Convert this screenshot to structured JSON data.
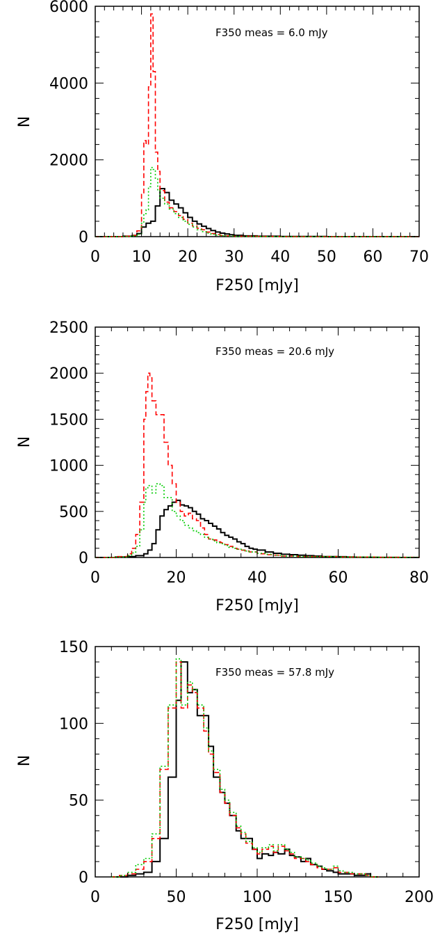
{
  "figure": {
    "panels": [
      {
        "annotation": "F350 meas = 6.0 mJy",
        "xlabel": "F250 [mJy]",
        "ylabel": "N",
        "xlim": [
          0,
          70
        ],
        "ylim": [
          0,
          6000
        ],
        "xticks": [
          "0",
          "10",
          "20",
          "30",
          "40",
          "50",
          "60",
          "70"
        ],
        "yticks": [
          "0",
          "2000",
          "4000",
          "6000"
        ]
      },
      {
        "annotation": "F350 meas = 20.6 mJy",
        "xlabel": "F250 [mJy]",
        "ylabel": "N",
        "xlim": [
          0,
          80
        ],
        "ylim": [
          0,
          2500
        ],
        "xticks": [
          "0",
          "20",
          "40",
          "60",
          "80"
        ],
        "yticks": [
          "0",
          "500",
          "1000",
          "1500",
          "2000",
          "2500"
        ]
      },
      {
        "annotation": "F350 meas = 57.8 mJy",
        "xlabel": "F250 [mJy]",
        "ylabel": "N",
        "xlim": [
          0,
          200
        ],
        "ylim": [
          0,
          150
        ],
        "xticks": [
          "0",
          "50",
          "100",
          "150",
          "200"
        ],
        "yticks": [
          "0",
          "50",
          "100",
          "150"
        ]
      }
    ]
  },
  "chart_data": [
    {
      "type": "line",
      "style": "step histogram",
      "xlabel": "F250 [mJy]",
      "ylabel": "N",
      "xlim": [
        0,
        70
      ],
      "ylim": [
        0,
        6000
      ],
      "annotation": "F350 meas = 6.0 mJy",
      "series": [
        {
          "color": "#000000",
          "dash": "solid",
          "x": [
            0,
            6,
            8,
            9,
            10,
            11,
            12,
            13,
            14,
            15,
            16,
            17,
            18,
            19,
            20,
            21,
            22,
            23,
            24,
            25,
            26,
            27,
            28,
            29,
            30,
            32,
            35,
            40,
            45,
            50,
            55,
            60,
            70
          ],
          "y": [
            0,
            10,
            30,
            80,
            250,
            350,
            400,
            800,
            1250,
            1150,
            950,
            850,
            750,
            620,
            500,
            400,
            330,
            270,
            210,
            160,
            120,
            90,
            70,
            50,
            35,
            20,
            10,
            5,
            3,
            0,
            0,
            0,
            0
          ]
        },
        {
          "color": "#ff0000",
          "dash": "dashed",
          "x": [
            0,
            6,
            8,
            9,
            10,
            10.5,
            11,
            11.5,
            12,
            12.5,
            13,
            13.5,
            14,
            15,
            16,
            17,
            18,
            19,
            20,
            21,
            22,
            23,
            24,
            25,
            26,
            27,
            28,
            30,
            35,
            40,
            70
          ],
          "y": [
            0,
            10,
            30,
            150,
            1100,
            2500,
            2400,
            3900,
            5800,
            4300,
            2200,
            1700,
            1200,
            900,
            750,
            650,
            550,
            450,
            350,
            280,
            220,
            180,
            120,
            80,
            50,
            30,
            20,
            10,
            5,
            0,
            0
          ]
        },
        {
          "color": "#00cc00",
          "dash": "dotted",
          "x": [
            0,
            6,
            8,
            9,
            10,
            10.5,
            11,
            11.5,
            12,
            12.5,
            13,
            13.5,
            14,
            15,
            16,
            17,
            18,
            19,
            20,
            21,
            22,
            23,
            24,
            25,
            26,
            27,
            28,
            30,
            35,
            40,
            70
          ],
          "y": [
            0,
            5,
            20,
            60,
            350,
            600,
            700,
            1300,
            1800,
            1750,
            1500,
            1200,
            1000,
            850,
            720,
            600,
            500,
            400,
            320,
            250,
            180,
            130,
            90,
            60,
            40,
            25,
            15,
            8,
            3,
            0,
            0
          ]
        }
      ]
    },
    {
      "type": "line",
      "style": "step histogram",
      "xlabel": "F250 [mJy]",
      "ylabel": "N",
      "xlim": [
        0,
        80
      ],
      "ylim": [
        0,
        2500
      ],
      "annotation": "F350 meas = 20.6 mJy",
      "series": [
        {
          "color": "#000000",
          "dash": "solid",
          "x": [
            0,
            5,
            8,
            10,
            12,
            13,
            14,
            15,
            16,
            17,
            18,
            19,
            20,
            21,
            22,
            23,
            24,
            25,
            26,
            27,
            28,
            29,
            30,
            31,
            32,
            33,
            34,
            35,
            36,
            37,
            38,
            39,
            40,
            42,
            44,
            46,
            48,
            50,
            52,
            54,
            56,
            58,
            60,
            62,
            64,
            66,
            68,
            70,
            75,
            80
          ],
          "y": [
            0,
            5,
            10,
            20,
            40,
            80,
            150,
            300,
            450,
            520,
            560,
            600,
            620,
            570,
            560,
            540,
            500,
            470,
            420,
            400,
            370,
            340,
            310,
            270,
            240,
            220,
            200,
            170,
            150,
            120,
            100,
            90,
            80,
            60,
            45,
            35,
            30,
            25,
            20,
            15,
            10,
            10,
            8,
            5,
            4,
            3,
            2,
            1,
            0,
            0
          ]
        },
        {
          "color": "#ff0000",
          "dash": "dashed",
          "x": [
            0,
            5,
            8,
            9,
            10,
            11,
            12,
            12.5,
            13,
            13.5,
            14,
            15,
            16,
            17,
            18,
            19,
            20,
            21,
            22,
            23,
            24,
            25,
            26,
            27,
            28,
            29,
            30,
            31,
            32,
            33,
            34,
            35,
            36,
            37,
            38,
            40,
            42,
            44,
            46,
            50,
            60,
            70,
            80
          ],
          "y": [
            0,
            10,
            40,
            100,
            250,
            600,
            1500,
            1800,
            2000,
            1950,
            1700,
            1550,
            1550,
            1250,
            1000,
            800,
            600,
            500,
            450,
            480,
            420,
            400,
            320,
            250,
            200,
            190,
            170,
            160,
            140,
            120,
            100,
            90,
            80,
            70,
            60,
            40,
            30,
            25,
            15,
            10,
            5,
            2,
            0
          ]
        },
        {
          "color": "#00cc00",
          "dash": "dotted",
          "x": [
            0,
            5,
            8,
            9,
            10,
            11,
            12,
            12.5,
            13,
            14,
            15,
            16,
            17,
            18,
            19,
            20,
            21,
            22,
            23,
            24,
            25,
            26,
            27,
            28,
            29,
            30,
            31,
            32,
            33,
            34,
            35,
            36,
            37,
            38,
            40,
            42,
            44,
            46,
            50,
            60,
            70,
            80
          ],
          "y": [
            0,
            5,
            20,
            50,
            120,
            300,
            600,
            750,
            780,
            700,
            800,
            780,
            650,
            650,
            500,
            450,
            400,
            350,
            320,
            290,
            270,
            250,
            220,
            200,
            180,
            160,
            150,
            130,
            110,
            100,
            90,
            80,
            70,
            60,
            45,
            35,
            25,
            15,
            10,
            5,
            2,
            0
          ]
        }
      ]
    },
    {
      "type": "line",
      "style": "step histogram",
      "xlabel": "F250 [mJy]",
      "ylabel": "N",
      "xlim": [
        0,
        200
      ],
      "ylim": [
        0,
        150
      ],
      "annotation": "F350 meas = 57.8 mJy",
      "series": [
        {
          "color": "#000000",
          "dash": "solid",
          "x": [
            10,
            15,
            20,
            25,
            30,
            35,
            40,
            45,
            50,
            53,
            57,
            60,
            63,
            67,
            70,
            73,
            77,
            80,
            83,
            87,
            90,
            93,
            97,
            100,
            103,
            107,
            110,
            113,
            117,
            120,
            123,
            127,
            130,
            133,
            137,
            140,
            143,
            147,
            150,
            153,
            157,
            160,
            163,
            167,
            170,
            175
          ],
          "y": [
            0,
            0,
            1,
            2,
            3,
            10,
            25,
            65,
            115,
            140,
            120,
            122,
            105,
            105,
            85,
            65,
            55,
            48,
            40,
            30,
            25,
            25,
            18,
            12,
            15,
            14,
            16,
            15,
            18,
            14,
            13,
            10,
            12,
            8,
            7,
            5,
            4,
            3,
            2,
            2,
            2,
            1,
            1,
            2,
            0,
            0
          ]
        },
        {
          "color": "#ff0000",
          "dash": "dashed",
          "x": [
            10,
            15,
            20,
            25,
            30,
            35,
            40,
            45,
            50,
            53,
            57,
            60,
            63,
            67,
            70,
            73,
            77,
            80,
            83,
            87,
            90,
            93,
            97,
            100,
            103,
            107,
            110,
            113,
            117,
            120,
            123,
            127,
            130,
            133,
            137,
            140,
            143,
            147,
            150,
            153,
            157,
            160,
            163,
            167,
            170,
            175
          ],
          "y": [
            0,
            1,
            2,
            5,
            10,
            25,
            70,
            110,
            140,
            110,
            125,
            120,
            110,
            95,
            80,
            68,
            55,
            48,
            40,
            32,
            28,
            22,
            18,
            15,
            18,
            20,
            16,
            20,
            17,
            15,
            12,
            12,
            10,
            8,
            6,
            5,
            5,
            6,
            3,
            3,
            2,
            2,
            2,
            1,
            0,
            0
          ]
        },
        {
          "color": "#00cc00",
          "dash": "dotted",
          "x": [
            10,
            15,
            20,
            25,
            30,
            35,
            40,
            45,
            50,
            53,
            57,
            60,
            63,
            67,
            70,
            73,
            77,
            80,
            83,
            87,
            90,
            93,
            97,
            100,
            103,
            107,
            110,
            113,
            117,
            120,
            123,
            127,
            130,
            133,
            137,
            140,
            143,
            147,
            150,
            153,
            157,
            160,
            163,
            167,
            170,
            175
          ],
          "y": [
            0,
            1,
            3,
            8,
            12,
            28,
            72,
            112,
            142,
            112,
            127,
            122,
            112,
            97,
            82,
            70,
            57,
            50,
            42,
            33,
            29,
            23,
            19,
            16,
            19,
            21,
            17,
            21,
            18,
            16,
            13,
            12,
            11,
            9,
            7,
            6,
            5,
            7,
            4,
            3,
            3,
            2,
            2,
            1,
            0,
            0
          ]
        }
      ]
    }
  ]
}
